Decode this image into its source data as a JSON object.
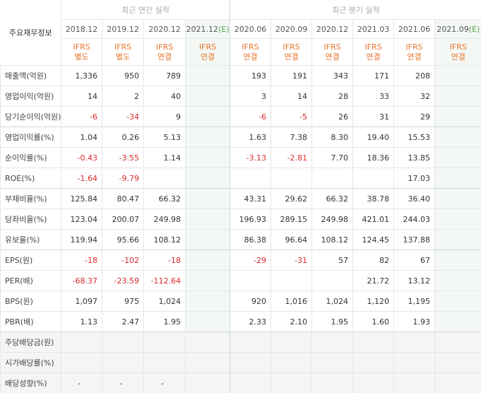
{
  "title": "주요재무정보",
  "groups": {
    "annual": "최근 연간 실적",
    "quarterly": "최근 분기 실적"
  },
  "periods": [
    "2018.12",
    "2019.12",
    "2020.12",
    "2021.12(E)",
    "2020.06",
    "2020.09",
    "2020.12",
    "2021.03",
    "2021.06",
    "2021.09(E)"
  ],
  "standards": [
    [
      "IFRS",
      "별도"
    ],
    [
      "IFRS",
      "별도"
    ],
    [
      "IFRS",
      "연결"
    ],
    [
      "IFRS",
      "연결"
    ],
    [
      "IFRS",
      "연결"
    ],
    [
      "IFRS",
      "연결"
    ],
    [
      "IFRS",
      "연결"
    ],
    [
      "IFRS",
      "연결"
    ],
    [
      "IFRS",
      "연결"
    ],
    [
      "IFRS",
      "연결"
    ]
  ],
  "rows": [
    {
      "label": "매출액(억원)",
      "values": [
        "1,336",
        "950",
        "789",
        "",
        "193",
        "191",
        "343",
        "171",
        "208",
        ""
      ]
    },
    {
      "label": "영업이익(억원)",
      "values": [
        "14",
        "2",
        "40",
        "",
        "3",
        "14",
        "28",
        "33",
        "32",
        ""
      ]
    },
    {
      "label": "당기순이익(억원)",
      "values": [
        "-6",
        "-34",
        "9",
        "",
        "-6",
        "-5",
        "26",
        "31",
        "29",
        ""
      ]
    },
    {
      "label": "영업이익률(%)",
      "values": [
        "1.04",
        "0.26",
        "5.13",
        "",
        "1.63",
        "7.38",
        "8.30",
        "19.40",
        "15.53",
        ""
      ]
    },
    {
      "label": "순이익률(%)",
      "values": [
        "-0.43",
        "-3.55",
        "1.14",
        "",
        "-3.13",
        "-2.81",
        "7.70",
        "18.36",
        "13.85",
        ""
      ]
    },
    {
      "label": "ROE(%)",
      "values": [
        "-1.64",
        "-9.79",
        "",
        "",
        "",
        "",
        "",
        "",
        "17.03",
        ""
      ]
    },
    {
      "label": "부채비율(%)",
      "values": [
        "125.84",
        "80.47",
        "66.32",
        "",
        "43.31",
        "29.62",
        "66.32",
        "38.78",
        "36.40",
        ""
      ]
    },
    {
      "label": "당좌비율(%)",
      "values": [
        "123.04",
        "200.07",
        "249.98",
        "",
        "196.93",
        "289.15",
        "249.98",
        "421.01",
        "244.03",
        ""
      ]
    },
    {
      "label": "유보율(%)",
      "values": [
        "119.94",
        "95.66",
        "108.12",
        "",
        "86.38",
        "96.64",
        "108.12",
        "124.45",
        "137.88",
        ""
      ]
    },
    {
      "label": "EPS(원)",
      "values": [
        "-18",
        "-102",
        "-18",
        "",
        "-29",
        "-31",
        "57",
        "82",
        "67",
        ""
      ]
    },
    {
      "label": "PER(배)",
      "values": [
        "-68.37",
        "-23.59",
        "-112.64",
        "",
        "",
        "",
        "",
        "21.72",
        "13.12",
        ""
      ]
    },
    {
      "label": "BPS(원)",
      "values": [
        "1,097",
        "975",
        "1,024",
        "",
        "920",
        "1,016",
        "1,024",
        "1,120",
        "1,195",
        ""
      ]
    },
    {
      "label": "PBR(배)",
      "values": [
        "1.13",
        "2.47",
        "1.95",
        "",
        "2.33",
        "2.10",
        "1.95",
        "1.60",
        "1.93",
        ""
      ]
    },
    {
      "label": "주당배당금(원)",
      "values": [
        "",
        "",
        "",
        "",
        "",
        "",
        "",
        "",
        "",
        ""
      ]
    },
    {
      "label": "시가배당률(%)",
      "values": [
        "",
        "",
        "",
        "",
        "",
        "",
        "",
        "",
        "",
        ""
      ]
    },
    {
      "label": "배당성향(%)",
      "values": [
        "-",
        "-",
        "-",
        "",
        "",
        "",
        "",
        "",
        "",
        ""
      ]
    }
  ],
  "colors": {
    "ifrs": "#e8762c",
    "negative": "#d82a2a",
    "estimate_header": "#54a04a"
  }
}
